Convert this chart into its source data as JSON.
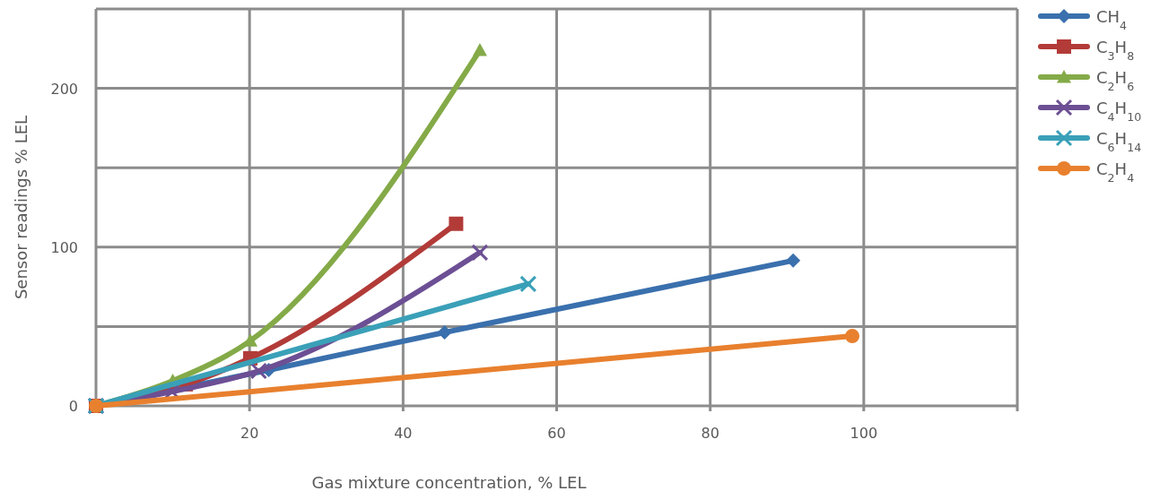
{
  "chart_data": {
    "type": "line",
    "xlabel": "Gas mixture concentration, % LEL",
    "ylabel": "Sensor readings % LEL",
    "xlim": [
      0,
      120
    ],
    "xticks": [
      {
        "value": 0,
        "label": null
      },
      20,
      40,
      60,
      80,
      100,
      {
        "value": 120,
        "label": null
      }
    ],
    "ylim": [
      0,
      250
    ],
    "yticks": [
      0,
      {
        "value": 50,
        "label": null
      },
      100,
      {
        "value": 150,
        "label": null
      },
      200,
      {
        "value": 250,
        "label": null
      }
    ],
    "grid": true,
    "legend": "right",
    "line_style": "solid",
    "series": [
      {
        "name": "CH$_{4}$",
        "color": "#3a70ad",
        "marker": "diamond",
        "x": [
          0,
          22.5,
          45.4,
          90.8
        ],
        "values": [
          0,
          22.6,
          46.3,
          91.5
        ]
      },
      {
        "name": "C$_{3}$H$_{8}$",
        "color": "#b23b38",
        "marker": "square",
        "x": [
          0,
          11.7,
          20.1,
          46.9
        ],
        "values": [
          0,
          13.6,
          30,
          114.7
        ]
      },
      {
        "name": "C$_{2}$H$_{6}$",
        "color": "#84aa48",
        "marker": "triangle",
        "x": [
          0,
          10,
          20.1,
          50
        ],
        "values": [
          0,
          15.8,
          41,
          224
        ]
      },
      {
        "name": "C$_{4}$H$_{10}$",
        "color": "#6c4f94",
        "marker": "cross",
        "x": [
          0,
          9.9,
          21.2,
          50
        ],
        "values": [
          0,
          9,
          22,
          96.6
        ]
      },
      {
        "name": "C$_{6}$H$_{14}$",
        "color": "#3aa0b8",
        "marker": "cross",
        "x": [
          0,
          56.3
        ],
        "values": [
          0,
          76.8
        ]
      },
      {
        "name": "C$_{2}$H$_{4}$",
        "color": "#e8802e",
        "marker": "circle",
        "x": [
          0,
          98.5
        ],
        "values": [
          0,
          44
        ]
      }
    ]
  }
}
